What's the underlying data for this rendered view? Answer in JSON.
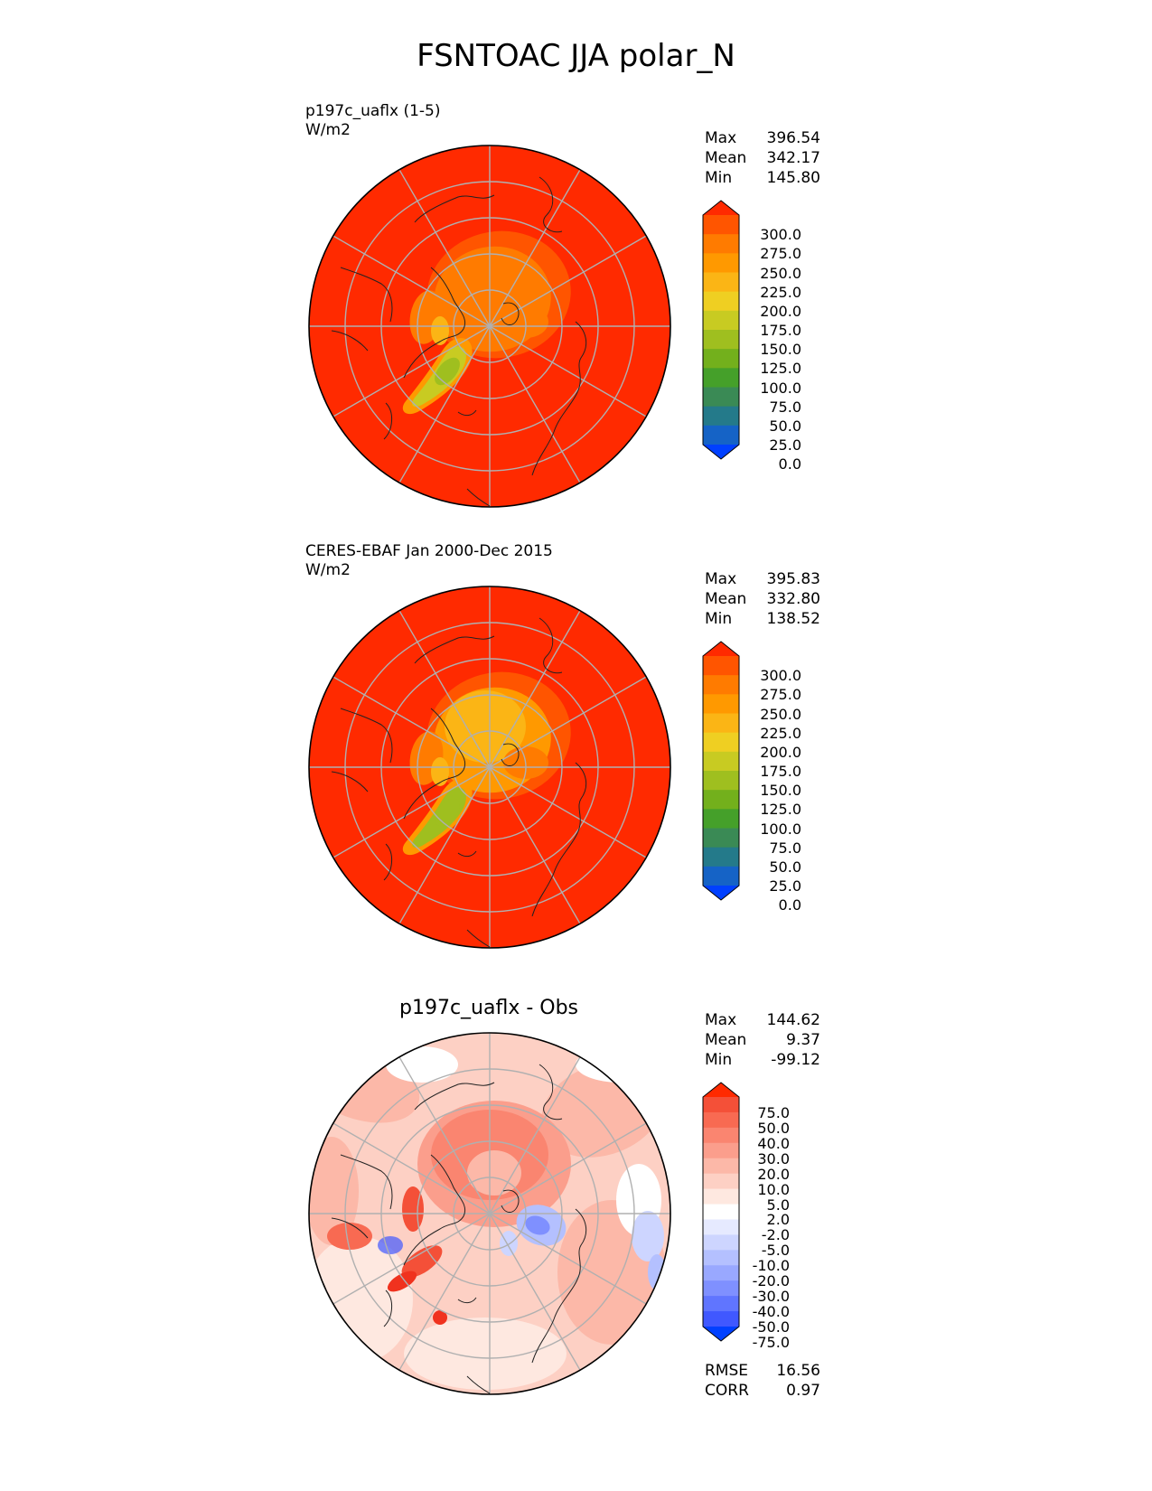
{
  "title": "FSNTOAC JJA polar_N",
  "panels": [
    {
      "label_line1": "p197c_uaflx (1-5)",
      "label_line2": "W/m2",
      "stats": [
        {
          "name": "Max",
          "value": "396.54"
        },
        {
          "name": "Mean",
          "value": "342.17"
        },
        {
          "name": "Min",
          "value": "145.80"
        }
      ],
      "colorbar": {
        "ticks": [
          "300.0",
          "275.0",
          "250.0",
          "225.0",
          "200.0",
          "175.0",
          "150.0",
          "125.0",
          "100.0",
          "75.0",
          "50.0",
          "25.0",
          "0.0"
        ],
        "colors": [
          "#ff2a00",
          "#ff5500",
          "#ff7b00",
          "#ff9900",
          "#fbb515",
          "#efcf22",
          "#c8cb22",
          "#9fbf1f",
          "#73b01c",
          "#45a02a",
          "#3a8a55",
          "#247a8a",
          "#1563c6",
          "#0040ff"
        ],
        "over_color": "#ff2a00",
        "under_color": "#0040ff"
      }
    },
    {
      "label_line1": "CERES-EBAF Jan 2000-Dec 2015",
      "label_line2": "W/m2",
      "stats": [
        {
          "name": "Max",
          "value": "395.83"
        },
        {
          "name": "Mean",
          "value": "332.80"
        },
        {
          "name": "Min",
          "value": "138.52"
        }
      ],
      "colorbar": {
        "ticks": [
          "300.0",
          "275.0",
          "250.0",
          "225.0",
          "200.0",
          "175.0",
          "150.0",
          "125.0",
          "100.0",
          "75.0",
          "50.0",
          "25.0",
          "0.0"
        ],
        "colors": [
          "#ff2a00",
          "#ff5500",
          "#ff7b00",
          "#ff9900",
          "#fbb515",
          "#efcf22",
          "#c8cb22",
          "#9fbf1f",
          "#73b01c",
          "#45a02a",
          "#3a8a55",
          "#247a8a",
          "#1563c6",
          "#0040ff"
        ],
        "over_color": "#ff2a00",
        "under_color": "#0040ff"
      }
    },
    {
      "title": "p197c_uaflx - Obs",
      "stats": [
        {
          "name": "Max",
          "value": "144.62"
        },
        {
          "name": "Mean",
          "value": "9.37"
        },
        {
          "name": "Min",
          "value": "-99.12"
        }
      ],
      "colorbar": {
        "ticks": [
          "75.0",
          "50.0",
          "40.0",
          "30.0",
          "20.0",
          "10.0",
          "5.0",
          "2.0",
          "-2.0",
          "-5.0",
          "-10.0",
          "-20.0",
          "-30.0",
          "-40.0",
          "-50.0",
          "-75.0"
        ],
        "colors": [
          "#f0321e",
          "#f45038",
          "#f86a52",
          "#fa8570",
          "#fb9e8c",
          "#fcb8a8",
          "#fdd0c4",
          "#fee8e0",
          "#ffffff",
          "#e6eaff",
          "#cdd5ff",
          "#b4c0ff",
          "#99a8ff",
          "#7f90ff",
          "#6075ff",
          "#4058ff",
          "#1f3bff"
        ],
        "over_color": "#ff2a00",
        "under_color": "#0040ff"
      },
      "metrics": [
        {
          "name": "RMSE",
          "value": "16.56"
        },
        {
          "name": "CORR",
          "value": "0.97"
        }
      ]
    }
  ]
}
